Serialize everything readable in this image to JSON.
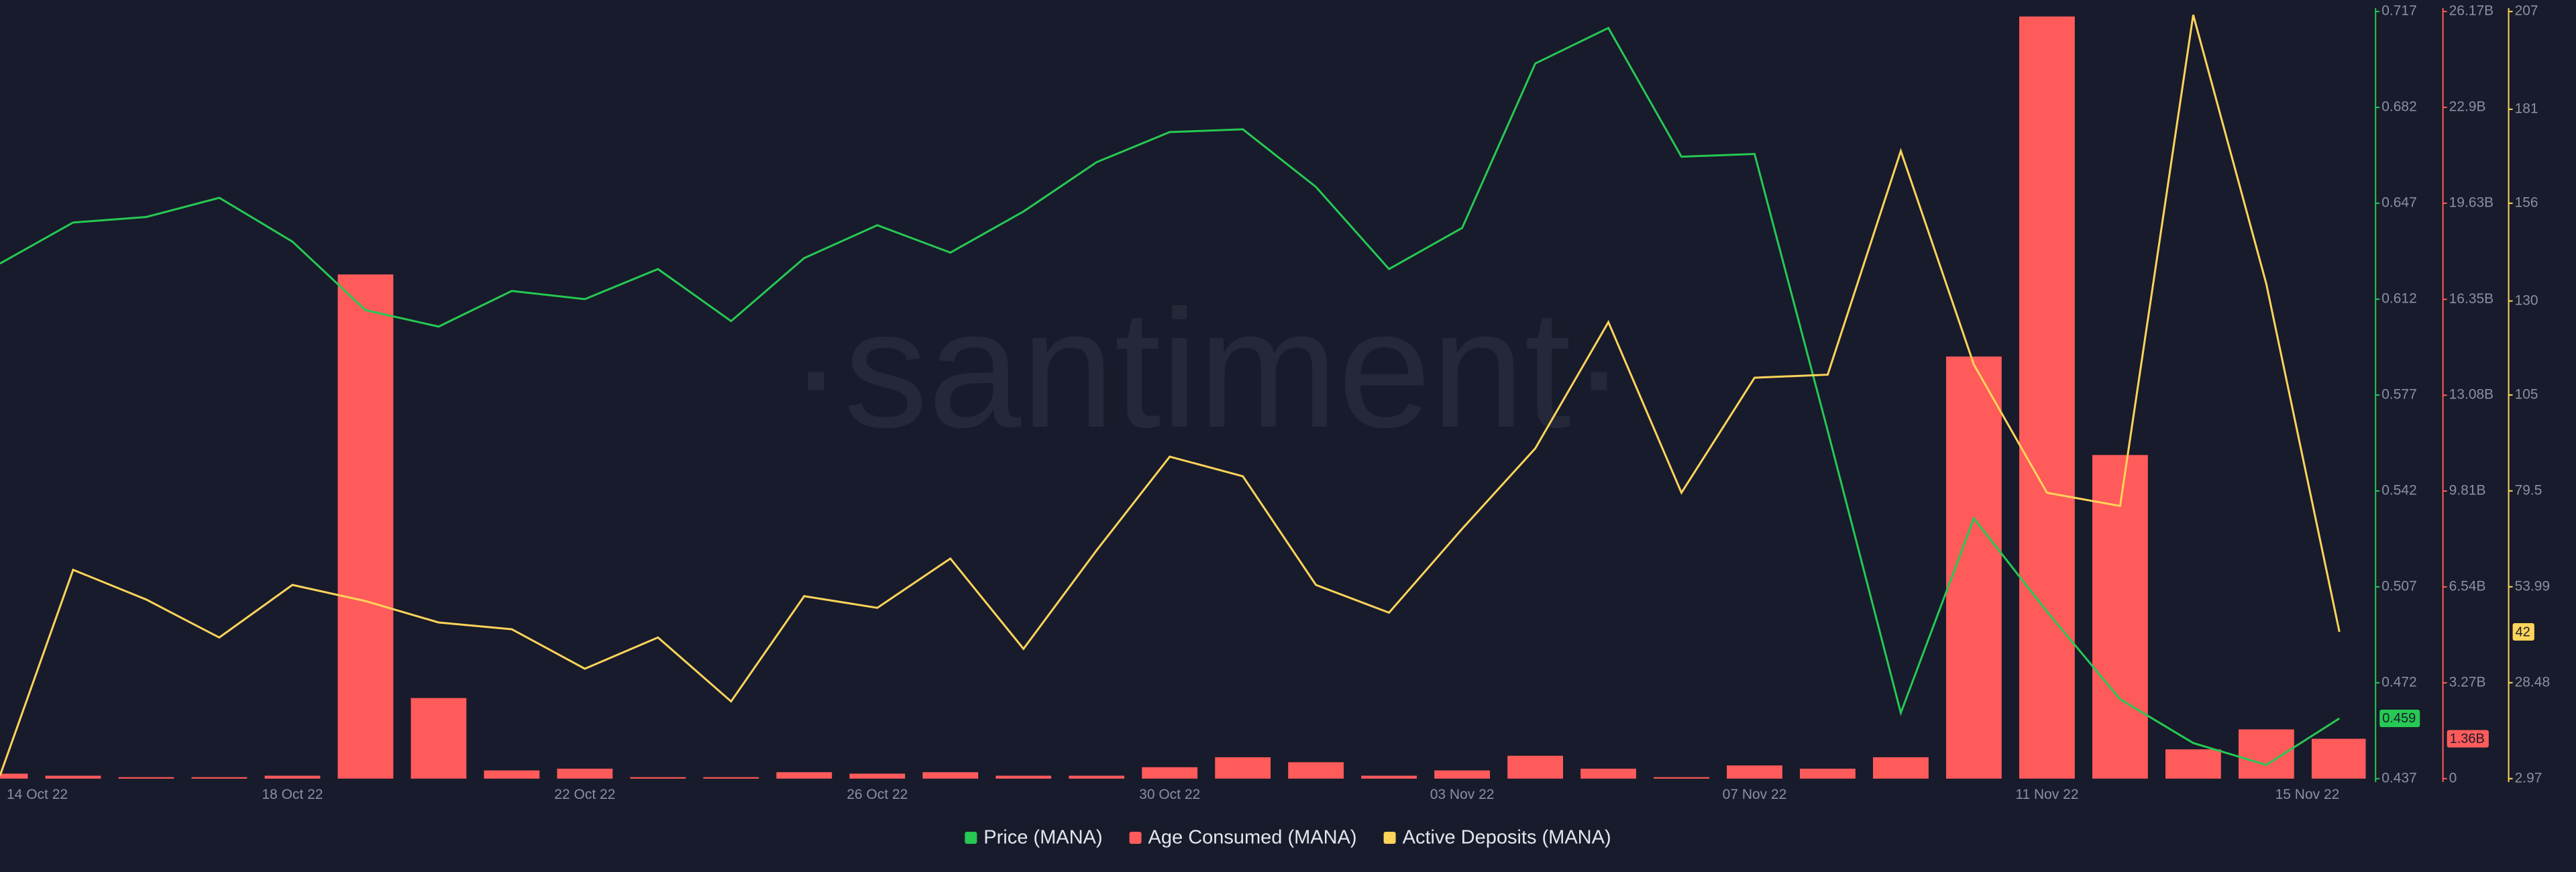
{
  "chart_data": {
    "type": "combo",
    "watermark": "·santiment·",
    "categories": [
      "14 Oct 22",
      null,
      null,
      null,
      "18 Oct 22",
      null,
      null,
      null,
      "22 Oct 22",
      null,
      null,
      null,
      "26 Oct 22",
      null,
      null,
      null,
      "30 Oct 22",
      null,
      null,
      null,
      "03 Nov 22",
      null,
      null,
      null,
      "07 Nov 22",
      null,
      null,
      null,
      "11 Nov 22",
      null,
      null,
      null,
      "15 Nov 22"
    ],
    "series": [
      {
        "name": "Price (MANA)",
        "color": "#26c953",
        "type": "line",
        "axis": "y",
        "values": [
          0.625,
          0.64,
          0.642,
          0.649,
          0.633,
          0.608,
          0.602,
          0.615,
          0.612,
          0.623,
          0.604,
          0.627,
          0.639,
          0.629,
          0.644,
          0.662,
          0.673,
          0.674,
          0.653,
          0.623,
          0.638,
          0.698,
          0.711,
          0.664,
          0.665,
          0.564,
          0.461,
          0.532,
          0.498,
          0.466,
          0.45,
          0.442,
          0.459
        ]
      },
      {
        "name": "Age Consumed (MANA)",
        "color": "#ff5b5b",
        "type": "bar",
        "axis": "y2",
        "values": [
          170000000,
          100000000,
          50000000,
          50000000,
          100000000,
          17200000000,
          2750000000,
          280000000,
          340000000,
          50000000,
          50000000,
          220000000,
          170000000,
          220000000,
          100000000,
          100000000,
          390000000,
          730000000,
          560000000,
          100000000,
          280000000,
          780000000,
          340000000,
          50000000,
          450000000,
          340000000,
          730000000,
          14400000000,
          26000000000,
          11040000000,
          1000000000,
          1680000000,
          1360000000
        ],
        "value_labels": [
          null,
          null,
          null,
          null,
          null,
          null,
          null,
          null,
          null,
          null,
          null,
          null,
          null,
          null,
          null,
          null,
          null,
          null,
          null,
          null,
          null,
          null,
          null,
          null,
          null,
          null,
          null,
          null,
          null,
          null,
          null,
          null,
          "1.36B"
        ]
      },
      {
        "name": "Active Deposits (MANA)",
        "color": "#ffd45a",
        "type": "line",
        "axis": "y3",
        "values": [
          3.8,
          58.5,
          50.6,
          40.5,
          54.5,
          50.2,
          44.5,
          42.7,
          32.2,
          40.5,
          23.5,
          51.5,
          48.4,
          61.5,
          37.5,
          63.7,
          88.6,
          83.4,
          54.5,
          47.1,
          69.4,
          90.8,
          124.4,
          79,
          109.6,
          110.4,
          169.9,
          113.1,
          79,
          75.5,
          206.1,
          134.5,
          42
        ]
      }
    ],
    "ylim": [
      0.437,
      0.717
    ],
    "yticks": [
      0.437,
      0.472,
      0.507,
      0.542,
      0.577,
      0.612,
      0.647,
      0.682,
      0.717
    ],
    "y2lim": [
      0,
      26170000000
    ],
    "y2ticks": [
      0,
      {
        "value": 3270000000,
        "label": "3.27B"
      },
      {
        "value": 6540000000,
        "label": "6.54B"
      },
      {
        "value": 9810000000,
        "label": "9.81B"
      },
      {
        "value": 13080000000,
        "label": "13.08B"
      },
      {
        "value": 16350000000,
        "label": "16.35B"
      },
      {
        "value": 19630000000,
        "label": "19.63B"
      },
      {
        "value": 22900000000,
        "label": "22.9B"
      },
      {
        "value": 26170000000,
        "label": "26.17B"
      }
    ],
    "y3lim": [
      2.97,
      207
    ],
    "y3ticks": [
      2.97,
      28.48,
      53.99,
      79.5,
      105,
      130,
      156,
      181,
      207
    ],
    "grid": false
  }
}
